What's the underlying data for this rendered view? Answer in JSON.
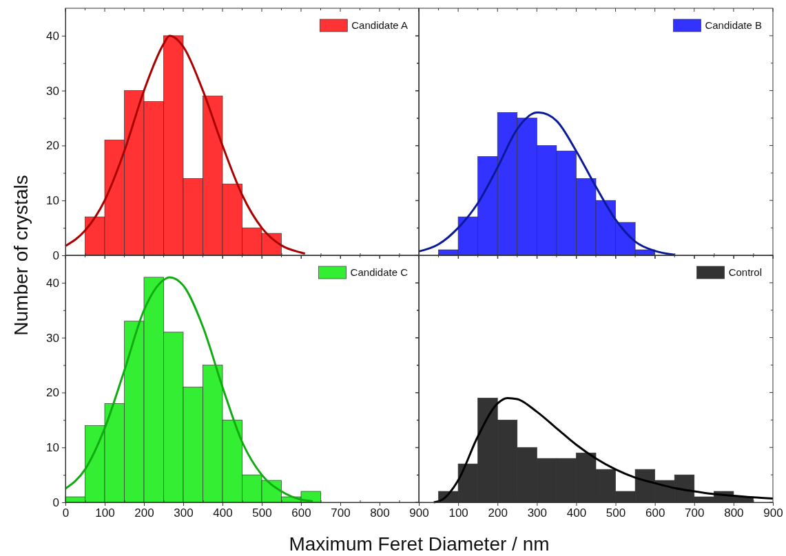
{
  "chart_data": [
    {
      "type": "histogram",
      "ylabel": "Number of crystals",
      "bins": [
        50,
        100,
        150,
        200,
        250,
        300,
        350,
        400,
        450,
        500,
        550
      ],
      "series": [
        {
          "name": "Candidate A",
          "color": "#ff3333",
          "values": [
            7,
            21,
            30,
            28,
            40,
            14,
            29,
            13,
            5,
            4
          ]
        },
        {
          "type": "line",
          "color": "#aa0000",
          "x": [
            0,
            50,
            100,
            150,
            200,
            250,
            265,
            300,
            350,
            400,
            450,
            500,
            550,
            600,
            610
          ],
          "values": [
            1.7,
            4.5,
            10,
            19,
            30,
            38.5,
            40,
            38,
            30,
            20,
            11,
            5,
            1.8,
            0.5,
            0.3
          ]
        }
      ],
      "xlim": [
        0,
        900
      ],
      "ylim": [
        0,
        45
      ],
      "xticks": [
        0,
        {
          "value": 50,
          "label": null
        },
        100,
        {
          "value": 150,
          "label": null
        },
        200,
        {
          "value": 250,
          "label": null
        },
        300,
        {
          "value": 350,
          "label": null
        },
        400,
        {
          "value": 450,
          "label": null
        },
        500,
        {
          "value": 550,
          "label": null
        },
        600,
        {
          "value": 650,
          "label": null
        },
        700,
        {
          "value": 750,
          "label": null
        },
        800,
        {
          "value": 850,
          "label": null
        },
        900
      ],
      "yticks": [
        0,
        {
          "value": 5,
          "label": null
        },
        10,
        {
          "value": 15,
          "label": null
        },
        20,
        {
          "value": 25,
          "label": null
        },
        30,
        {
          "value": 35,
          "label": null
        },
        40
      ],
      "tick_labels": "y",
      "legend": "top right",
      "grid": false
    },
    {
      "type": "histogram",
      "bins": [
        50,
        100,
        150,
        200,
        250,
        300,
        350,
        400,
        450,
        500,
        550,
        600
      ],
      "series": [
        {
          "name": "Candidate B",
          "color": "#3333ff",
          "values": [
            1,
            7,
            18,
            26,
            25,
            20,
            19,
            14,
            10,
            6,
            1
          ]
        },
        {
          "type": "line",
          "color": "#0a1a9a",
          "x": [
            0,
            50,
            100,
            150,
            200,
            250,
            300,
            305,
            350,
            400,
            450,
            500,
            550,
            600,
            650
          ],
          "values": [
            0.7,
            2,
            5,
            9.5,
            16,
            23,
            26,
            26,
            24.5,
            19,
            12.5,
            6.5,
            2.5,
            0.8,
            0.1
          ]
        }
      ],
      "xlim": [
        0,
        900
      ],
      "ylim": [
        0,
        45
      ],
      "xticks": [
        0,
        {
          "value": 50,
          "label": null
        },
        100,
        {
          "value": 150,
          "label": null
        },
        200,
        {
          "value": 250,
          "label": null
        },
        300,
        {
          "value": 350,
          "label": null
        },
        400,
        {
          "value": 450,
          "label": null
        },
        500,
        {
          "value": 550,
          "label": null
        },
        600,
        {
          "value": 650,
          "label": null
        },
        700,
        {
          "value": 750,
          "label": null
        },
        800,
        {
          "value": 850,
          "label": null
        },
        900
      ],
      "yticks": [
        0,
        {
          "value": 5,
          "label": null
        },
        10,
        {
          "value": 15,
          "label": null
        },
        20,
        {
          "value": 25,
          "label": null
        },
        30,
        {
          "value": 35,
          "label": null
        },
        40
      ],
      "tick_labels": false,
      "legend": "top right",
      "grid": false
    },
    {
      "type": "histogram",
      "xlabel": "Maximum Feret Diameter / nm",
      "bins": [
        0,
        50,
        100,
        150,
        200,
        250,
        300,
        350,
        400,
        450,
        500,
        550,
        600,
        650
      ],
      "series": [
        {
          "name": "Candidate C",
          "color": "#33ee33",
          "values": [
            1,
            14,
            18,
            33,
            41,
            31,
            21,
            25,
            15,
            5,
            4,
            1,
            2
          ]
        },
        {
          "type": "line",
          "color": "#11aa11",
          "x": [
            0,
            50,
            100,
            150,
            200,
            250,
            265,
            300,
            350,
            400,
            450,
            500,
            550,
            600,
            630
          ],
          "values": [
            2.5,
            6,
            13.5,
            24,
            35,
            40.5,
            41,
            39.5,
            32,
            21,
            11,
            5,
            2,
            0.5,
            0.2
          ]
        }
      ],
      "xlim": [
        0,
        900
      ],
      "ylim": [
        0,
        45
      ],
      "xticks": [
        0,
        {
          "value": 50,
          "label": null
        },
        100,
        {
          "value": 150,
          "label": null
        },
        200,
        {
          "value": 250,
          "label": null
        },
        300,
        {
          "value": 350,
          "label": null
        },
        400,
        {
          "value": 450,
          "label": null
        },
        500,
        {
          "value": 550,
          "label": null
        },
        600,
        {
          "value": 650,
          "label": null
        },
        700,
        {
          "value": 750,
          "label": null
        },
        800,
        {
          "value": 850,
          "label": null
        },
        900
      ],
      "yticks": [
        0,
        {
          "value": 5,
          "label": null
        },
        10,
        {
          "value": 15,
          "label": null
        },
        20,
        {
          "value": 25,
          "label": null
        },
        30,
        {
          "value": 35,
          "label": null
        },
        40
      ],
      "legend": "top right",
      "grid": false
    },
    {
      "type": "histogram",
      "bins": [
        50,
        100,
        150,
        200,
        250,
        300,
        350,
        400,
        450,
        500,
        550,
        600,
        650,
        700,
        750,
        800,
        850
      ],
      "series": [
        {
          "name": "Control",
          "color": "#333333",
          "values": [
            2,
            7,
            19,
            15,
            10,
            8,
            8,
            9,
            6,
            2,
            6,
            4,
            5,
            1,
            2,
            1
          ]
        },
        {
          "type": "line",
          "color": "#000000",
          "x": [
            38,
            60,
            100,
            150,
            200,
            225,
            250,
            300,
            350,
            400,
            450,
            500,
            550,
            600,
            650,
            700,
            750,
            800,
            850,
            900
          ],
          "values": [
            0,
            0.5,
            4,
            12,
            18,
            19,
            18.8,
            16.5,
            13.5,
            10.5,
            8,
            6,
            4.5,
            3.5,
            2.6,
            2,
            1.5,
            1.2,
            0.9,
            0.7
          ]
        }
      ],
      "xlim": [
        0,
        900
      ],
      "ylim": [
        0,
        45
      ],
      "xticks": [
        {
          "value": 0,
          "label": null
        },
        {
          "value": 50,
          "label": null
        },
        100,
        {
          "value": 150,
          "label": null
        },
        200,
        {
          "value": 250,
          "label": null
        },
        300,
        {
          "value": 350,
          "label": null
        },
        400,
        {
          "value": 450,
          "label": null
        },
        500,
        {
          "value": 550,
          "label": null
        },
        600,
        {
          "value": 650,
          "label": null
        },
        700,
        {
          "value": 750,
          "label": null
        },
        800,
        {
          "value": 850,
          "label": null
        },
        900
      ],
      "yticks": [
        0,
        {
          "value": 5,
          "label": null
        },
        10,
        {
          "value": 15,
          "label": null
        },
        20,
        {
          "value": 25,
          "label": null
        },
        30,
        {
          "value": 35,
          "label": null
        },
        40
      ],
      "tick_labels": "x",
      "legend": "top right",
      "grid": false
    }
  ]
}
